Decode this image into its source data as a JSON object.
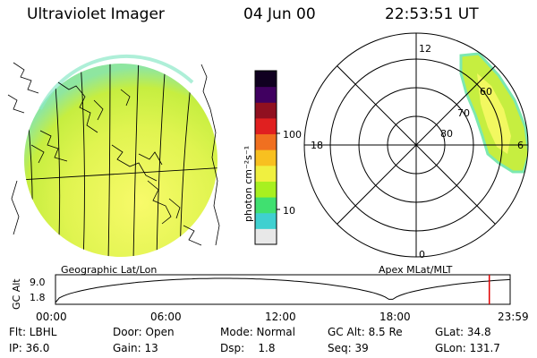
{
  "header": {
    "title": "Ultraviolet Imager",
    "date": "04 Jun 00",
    "time": "22:53:51 UT"
  },
  "colorbar": {
    "unit_label": "photon cm⁻²s⁻¹",
    "ticks": [
      {
        "value": 100,
        "label": "100"
      },
      {
        "value": 10,
        "label": "10"
      }
    ],
    "colors": [
      "#e8e8e8",
      "#3fd0d0",
      "#40e070",
      "#a8f020",
      "#f0f040",
      "#f8c020",
      "#f07020",
      "#e02020",
      "#901020",
      "#400060",
      "#100020"
    ]
  },
  "geo_panel": {
    "caption": "Geographic Lat/Lon",
    "aurora_colors": {
      "fill": "#c8f040",
      "core": "#f4f860",
      "edge": "#7ce8b0"
    }
  },
  "polar_panel": {
    "caption": "Apex MLat/MLT",
    "mlt_labels": {
      "top": "12",
      "left": "18",
      "right": "6",
      "bottom": "0"
    },
    "lat_labels": [
      "60",
      "70",
      "80"
    ]
  },
  "altitude_plot": {
    "ylabel": "GC Alt",
    "yticks": [
      "9.0",
      "1.8"
    ],
    "xticks": [
      "00:00",
      "06:00",
      "12:00",
      "18:00",
      "23:59"
    ],
    "marker_time_hours": 22.9,
    "marker_color": "#e00000"
  },
  "footer": [
    [
      "Flt: LBHL",
      "Door: Open",
      "Mode: Normal",
      "GC Alt: 8.5 Re",
      "GLat: 34.8"
    ],
    [
      "IP: 36.0",
      "Gain: 13",
      "Dsp:    1.8",
      "Seq: 39",
      "GLon: 131.7"
    ]
  ]
}
